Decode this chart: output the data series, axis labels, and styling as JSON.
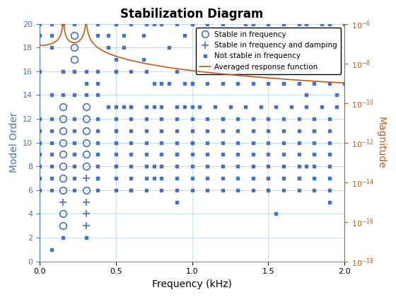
{
  "title": "Stabilization Diagram",
  "xlabel": "Frequency (kHz)",
  "ylabel_left": "Model Order",
  "ylabel_right": "Magnitude",
  "xlim": [
    0,
    2
  ],
  "ylim_left": [
    0,
    20
  ],
  "background_color": "#ffffff",
  "grid_color": "#c5dff8",
  "left_axis_color": "#4472c4",
  "right_axis_color": "#c55a11",
  "marker_color": "#4472c4",
  "line_color": "#c55a11",
  "stable_freq_circles": [
    [
      0.155,
      3
    ],
    [
      0.155,
      4
    ],
    [
      0.155,
      6
    ],
    [
      0.155,
      7
    ],
    [
      0.155,
      8
    ],
    [
      0.155,
      9
    ],
    [
      0.155,
      10
    ],
    [
      0.155,
      11
    ],
    [
      0.155,
      12
    ],
    [
      0.155,
      13
    ],
    [
      0.305,
      6
    ],
    [
      0.305,
      8
    ],
    [
      0.305,
      9
    ],
    [
      0.305,
      10
    ],
    [
      0.305,
      11
    ],
    [
      0.305,
      12
    ],
    [
      0.305,
      13
    ],
    [
      0.225,
      19
    ],
    [
      0.225,
      18
    ],
    [
      0.225,
      17
    ]
  ],
  "stable_freq_damp_plus": [
    [
      0.155,
      5
    ],
    [
      0.305,
      3
    ],
    [
      0.305,
      4
    ],
    [
      0.305,
      5
    ],
    [
      0.305,
      7
    ]
  ],
  "not_stable_dots": [
    [
      0.08,
      1
    ],
    [
      0.155,
      2
    ],
    [
      0.08,
      19
    ],
    [
      0.155,
      14
    ],
    [
      0.155,
      16
    ],
    [
      0.225,
      9
    ],
    [
      0.225,
      14
    ],
    [
      0.225,
      16
    ],
    [
      0.305,
      2
    ],
    [
      0.305,
      14
    ],
    [
      0.305,
      15
    ],
    [
      0.305,
      16
    ],
    [
      0.38,
      7
    ],
    [
      0.38,
      15
    ],
    [
      0.5,
      8
    ],
    [
      0.5,
      11
    ],
    [
      0.5,
      13
    ],
    [
      0.5,
      16
    ],
    [
      0.5,
      20
    ],
    [
      0.6,
      6
    ],
    [
      0.6,
      13
    ],
    [
      0.75,
      7
    ],
    [
      0.75,
      8
    ],
    [
      0.9,
      5
    ],
    [
      0.9,
      9
    ],
    [
      1.0,
      10
    ],
    [
      1.0,
      13
    ],
    [
      1.0,
      15
    ],
    [
      1.2,
      12
    ],
    [
      1.5,
      6
    ],
    [
      1.55,
      4
    ],
    [
      1.6,
      15
    ],
    [
      1.7,
      7
    ],
    [
      1.75,
      8
    ],
    [
      1.9,
      5
    ],
    [
      0.0,
      20
    ],
    [
      0.08,
      20
    ],
    [
      0.155,
      20
    ],
    [
      0.225,
      20
    ],
    [
      0.38,
      20
    ],
    [
      0.45,
      19
    ],
    [
      0.5,
      20
    ],
    [
      0.55,
      19
    ],
    [
      0.6,
      20
    ],
    [
      0.68,
      19
    ],
    [
      0.7,
      20
    ],
    [
      0.75,
      20
    ],
    [
      0.8,
      20
    ],
    [
      0.85,
      18
    ],
    [
      0.9,
      20
    ],
    [
      0.95,
      19
    ],
    [
      1.0,
      20
    ],
    [
      1.1,
      20
    ],
    [
      1.15,
      19
    ],
    [
      1.2,
      20
    ],
    [
      1.3,
      19
    ],
    [
      1.35,
      20
    ],
    [
      1.4,
      20
    ],
    [
      1.5,
      20
    ],
    [
      1.55,
      19
    ],
    [
      1.6,
      20
    ],
    [
      1.7,
      20
    ],
    [
      1.75,
      20
    ],
    [
      1.8,
      19
    ],
    [
      1.85,
      20
    ],
    [
      1.9,
      20
    ],
    [
      2.0,
      20
    ],
    [
      0.0,
      19
    ],
    [
      0.08,
      18
    ],
    [
      0.155,
      16
    ],
    [
      0.38,
      19
    ],
    [
      0.45,
      18
    ],
    [
      0.5,
      17
    ],
    [
      0.55,
      18
    ],
    [
      0.6,
      16
    ],
    [
      0.68,
      17
    ],
    [
      0.7,
      16
    ],
    [
      0.75,
      15
    ],
    [
      0.8,
      15
    ],
    [
      0.85,
      15
    ],
    [
      0.9,
      16
    ],
    [
      0.95,
      15
    ],
    [
      1.0,
      15
    ],
    [
      1.05,
      16
    ],
    [
      1.1,
      15
    ],
    [
      1.2,
      15
    ],
    [
      1.3,
      15
    ],
    [
      1.4,
      15
    ],
    [
      1.5,
      15
    ],
    [
      1.6,
      15
    ],
    [
      1.7,
      15
    ],
    [
      1.75,
      14
    ],
    [
      1.8,
      15
    ],
    [
      1.9,
      15
    ],
    [
      1.95,
      14
    ],
    [
      2.0,
      15
    ],
    [
      0.0,
      16
    ],
    [
      0.08,
      14
    ],
    [
      0.225,
      16
    ],
    [
      0.38,
      16
    ],
    [
      0.38,
      14
    ],
    [
      0.45,
      13
    ],
    [
      0.5,
      16
    ],
    [
      0.55,
      13
    ],
    [
      0.6,
      13
    ],
    [
      0.7,
      13
    ],
    [
      0.75,
      13
    ],
    [
      0.8,
      13
    ],
    [
      0.9,
      13
    ],
    [
      0.95,
      13
    ],
    [
      1.05,
      13
    ],
    [
      1.15,
      13
    ],
    [
      1.25,
      13
    ],
    [
      1.35,
      13
    ],
    [
      1.45,
      13
    ],
    [
      1.55,
      13
    ],
    [
      1.65,
      13
    ],
    [
      1.75,
      13
    ],
    [
      1.85,
      13
    ],
    [
      1.95,
      13
    ],
    [
      0.0,
      12
    ],
    [
      0.08,
      12
    ],
    [
      0.225,
      12
    ],
    [
      0.38,
      12
    ],
    [
      0.5,
      12
    ],
    [
      0.6,
      12
    ],
    [
      0.7,
      12
    ],
    [
      0.8,
      12
    ],
    [
      0.9,
      12
    ],
    [
      1.0,
      12
    ],
    [
      1.1,
      12
    ],
    [
      1.2,
      12
    ],
    [
      1.3,
      12
    ],
    [
      1.4,
      12
    ],
    [
      1.5,
      12
    ],
    [
      1.6,
      12
    ],
    [
      1.7,
      12
    ],
    [
      1.8,
      12
    ],
    [
      1.9,
      12
    ],
    [
      0.0,
      11
    ],
    [
      0.08,
      11
    ],
    [
      0.225,
      11
    ],
    [
      0.38,
      11
    ],
    [
      0.5,
      11
    ],
    [
      0.6,
      11
    ],
    [
      0.7,
      11
    ],
    [
      0.8,
      11
    ],
    [
      0.9,
      11
    ],
    [
      1.0,
      11
    ],
    [
      1.1,
      11
    ],
    [
      1.2,
      11
    ],
    [
      1.3,
      11
    ],
    [
      1.4,
      11
    ],
    [
      1.5,
      11
    ],
    [
      1.6,
      11
    ],
    [
      1.7,
      11
    ],
    [
      1.8,
      11
    ],
    [
      1.9,
      11
    ],
    [
      0.0,
      10
    ],
    [
      0.08,
      10
    ],
    [
      0.225,
      10
    ],
    [
      0.38,
      10
    ],
    [
      0.5,
      10
    ],
    [
      0.6,
      10
    ],
    [
      0.7,
      10
    ],
    [
      0.8,
      10
    ],
    [
      0.9,
      10
    ],
    [
      1.0,
      10
    ],
    [
      1.1,
      10
    ],
    [
      1.2,
      10
    ],
    [
      1.3,
      10
    ],
    [
      1.4,
      10
    ],
    [
      1.5,
      10
    ],
    [
      1.6,
      10
    ],
    [
      1.7,
      10
    ],
    [
      1.8,
      10
    ],
    [
      1.9,
      10
    ],
    [
      0.0,
      9
    ],
    [
      0.08,
      9
    ],
    [
      0.225,
      9
    ],
    [
      0.38,
      9
    ],
    [
      0.5,
      9
    ],
    [
      0.6,
      9
    ],
    [
      0.7,
      9
    ],
    [
      0.8,
      9
    ],
    [
      0.9,
      9
    ],
    [
      1.0,
      9
    ],
    [
      1.1,
      9
    ],
    [
      1.2,
      9
    ],
    [
      1.3,
      9
    ],
    [
      1.4,
      9
    ],
    [
      1.5,
      9
    ],
    [
      1.6,
      9
    ],
    [
      1.7,
      9
    ],
    [
      1.8,
      9
    ],
    [
      1.9,
      9
    ],
    [
      0.0,
      8
    ],
    [
      0.08,
      8
    ],
    [
      0.225,
      8
    ],
    [
      0.38,
      8
    ],
    [
      0.5,
      8
    ],
    [
      0.6,
      8
    ],
    [
      0.7,
      8
    ],
    [
      0.8,
      8
    ],
    [
      0.9,
      8
    ],
    [
      1.0,
      8
    ],
    [
      1.1,
      8
    ],
    [
      1.2,
      8
    ],
    [
      1.3,
      8
    ],
    [
      1.4,
      8
    ],
    [
      1.5,
      8
    ],
    [
      1.6,
      8
    ],
    [
      1.7,
      8
    ],
    [
      1.8,
      8
    ],
    [
      1.9,
      8
    ],
    [
      0.0,
      7
    ],
    [
      0.08,
      7
    ],
    [
      0.225,
      7
    ],
    [
      0.38,
      7
    ],
    [
      0.5,
      7
    ],
    [
      0.6,
      7
    ],
    [
      0.7,
      7
    ],
    [
      0.8,
      7
    ],
    [
      0.9,
      7
    ],
    [
      1.0,
      7
    ],
    [
      1.1,
      7
    ],
    [
      1.2,
      7
    ],
    [
      1.3,
      7
    ],
    [
      1.4,
      7
    ],
    [
      1.5,
      7
    ],
    [
      1.6,
      7
    ],
    [
      1.7,
      7
    ],
    [
      1.8,
      7
    ],
    [
      1.9,
      7
    ],
    [
      0.0,
      6
    ],
    [
      0.08,
      6
    ],
    [
      0.225,
      6
    ],
    [
      0.38,
      6
    ],
    [
      0.5,
      6
    ],
    [
      0.6,
      6
    ],
    [
      0.7,
      6
    ],
    [
      0.8,
      6
    ],
    [
      0.9,
      6
    ],
    [
      1.0,
      6
    ],
    [
      1.1,
      6
    ],
    [
      1.2,
      6
    ],
    [
      1.3,
      6
    ],
    [
      1.4,
      6
    ],
    [
      1.5,
      6
    ],
    [
      1.6,
      6
    ],
    [
      1.7,
      6
    ],
    [
      1.8,
      6
    ],
    [
      1.9,
      6
    ]
  ],
  "freq1": 0.155,
  "freq2": 0.305
}
